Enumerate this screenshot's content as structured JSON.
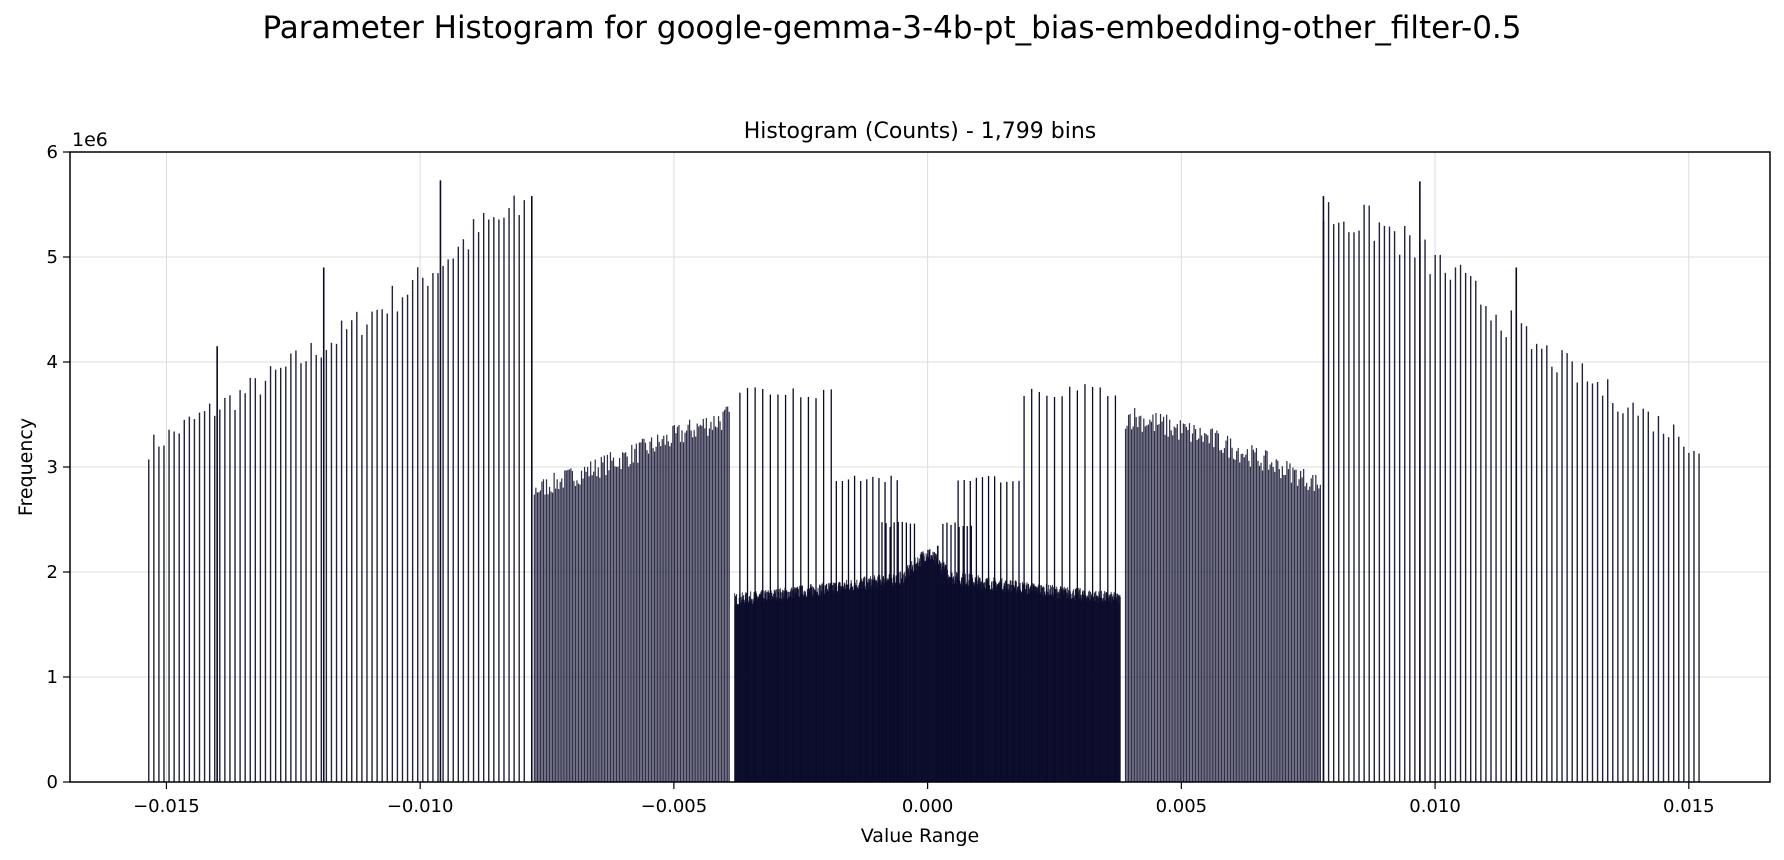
{
  "figure": {
    "suptitle": "Parameter Histogram for google-gemma-3-4b-pt_bias-embedding-other_filter-0.5"
  },
  "chart_data": {
    "type": "bar",
    "title": "Histogram (Counts) - 1,799 bins",
    "xlabel": "Value Range",
    "ylabel": "Frequency",
    "y_offset_label": "1e6",
    "xlim": [
      -0.0169,
      0.0166
    ],
    "ylim": [
      0,
      6
    ],
    "xticks": [
      -0.015,
      -0.01,
      -0.005,
      0.0,
      0.005,
      0.01,
      0.015
    ],
    "xtick_labels": [
      "−0.015",
      "−0.010",
      "−0.005",
      "0.000",
      "0.005",
      "0.010",
      "0.015"
    ],
    "yticks": [
      0,
      1,
      2,
      3,
      4,
      5,
      6
    ],
    "ytick_labels": [
      "0",
      "1",
      "2",
      "3",
      "4",
      "5",
      "6"
    ],
    "grid": true,
    "bar_color": "#0a0a2a",
    "bin_range": [
      -0.01535,
      0.01525
    ],
    "notable_bars": [
      {
        "x": -0.0096,
        "value": 5.73
      },
      {
        "x": 0.0097,
        "value": 5.72
      },
      {
        "x": -0.0078,
        "value": 5.58
      },
      {
        "x": 0.0078,
        "value": 5.58
      },
      {
        "x": -0.0119,
        "value": 4.9
      },
      {
        "x": 0.0116,
        "value": 4.9
      },
      {
        "x": -0.014,
        "value": 4.15
      },
      {
        "x": 0.0002,
        "value": 2.25
      }
    ],
    "envelope": [
      {
        "x": -0.01535,
        "value": 3.2
      },
      {
        "x": -0.0145,
        "value": 3.45
      },
      {
        "x": -0.013,
        "value": 3.85
      },
      {
        "x": -0.0115,
        "value": 4.3
      },
      {
        "x": -0.01,
        "value": 4.8
      },
      {
        "x": -0.0088,
        "value": 5.3
      },
      {
        "x": -0.0079,
        "value": 5.5
      },
      {
        "x": -0.0077,
        "value": 2.8
      },
      {
        "x": -0.006,
        "value": 3.1
      },
      {
        "x": -0.0045,
        "value": 3.4
      },
      {
        "x": -0.0039,
        "value": 3.5
      },
      {
        "x": -0.0037,
        "value": 1.75
      },
      {
        "x": -0.002,
        "value": 1.85
      },
      {
        "x": -0.0005,
        "value": 1.95
      },
      {
        "x": 0.0,
        "value": 2.2
      },
      {
        "x": 0.0005,
        "value": 1.95
      },
      {
        "x": 0.002,
        "value": 1.85
      },
      {
        "x": 0.0038,
        "value": 1.75
      },
      {
        "x": 0.004,
        "value": 3.5
      },
      {
        "x": 0.0055,
        "value": 3.3
      },
      {
        "x": 0.007,
        "value": 3.0
      },
      {
        "x": 0.0077,
        "value": 2.85
      },
      {
        "x": 0.0078,
        "value": 5.45
      },
      {
        "x": 0.009,
        "value": 5.3
      },
      {
        "x": 0.0105,
        "value": 4.8
      },
      {
        "x": 0.012,
        "value": 4.15
      },
      {
        "x": 0.0135,
        "value": 3.7
      },
      {
        "x": 0.0152,
        "value": 3.2
      }
    ]
  }
}
